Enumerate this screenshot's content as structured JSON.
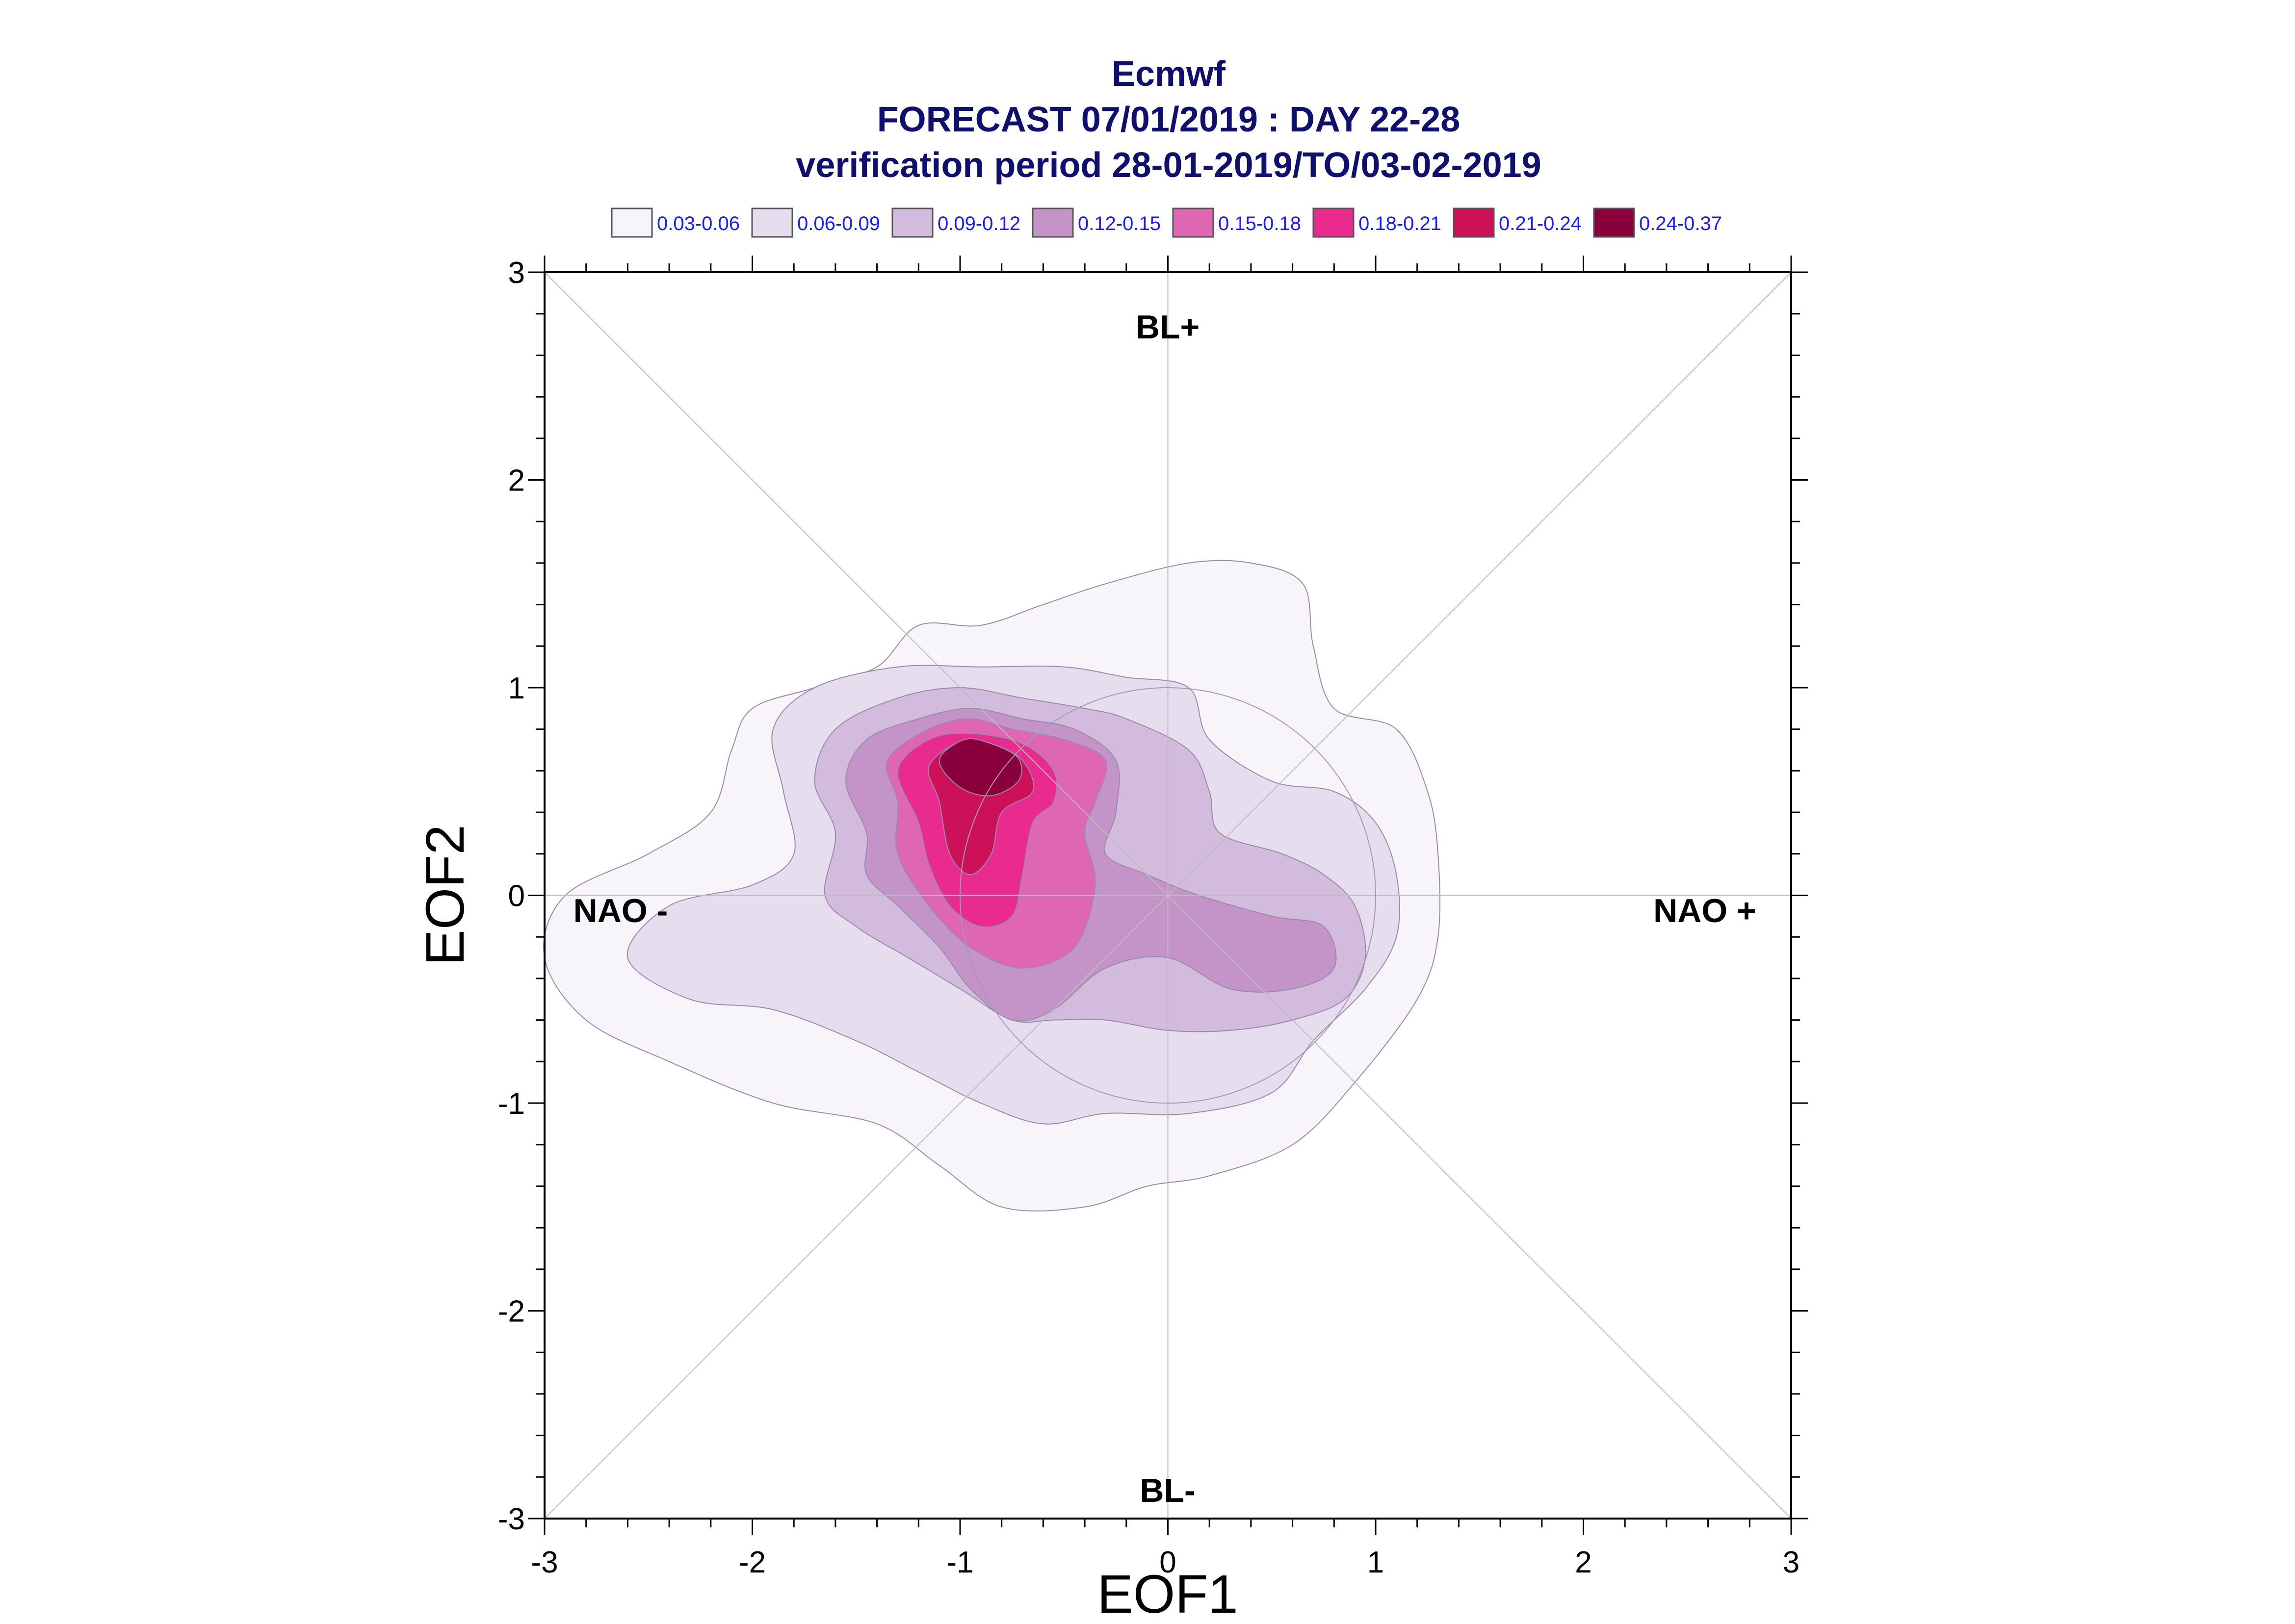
{
  "chart_data": {
    "type": "contour",
    "title_lines": [
      "Ecmwf",
      "FORECAST 07/01/2019 : DAY 22-28",
      "verification period 28-01-2019/TO/03-02-2019"
    ],
    "xlabel": "EOF1",
    "ylabel": "EOF2",
    "xlim": [
      -3,
      3
    ],
    "ylim": [
      -3,
      3
    ],
    "xticks": [
      "-3",
      "-2",
      "-1",
      "0",
      "1",
      "2",
      "3"
    ],
    "yticks": [
      "-3",
      "-2",
      "-1",
      "0",
      "1",
      "2",
      "3"
    ],
    "legend_position": "top",
    "legend": [
      {
        "label": "0.03-0.06",
        "color": "#f7f4fa"
      },
      {
        "label": "0.06-0.09",
        "color": "#e6ddee"
      },
      {
        "label": "0.09-0.12",
        "color": "#d3bbdd"
      },
      {
        "label": "0.12-0.15",
        "color": "#c494c8"
      },
      {
        "label": "0.15-0.18",
        "color": "#df66b2"
      },
      {
        "label": "0.18-0.21",
        "color": "#e92a8f"
      },
      {
        "label": "0.21-0.24",
        "color": "#cc1158"
      },
      {
        "label": "0.24-0.37",
        "color": "#8a003d"
      }
    ],
    "regime_labels": [
      "BL+",
      "BL-",
      "NAO -",
      "NAO +"
    ],
    "reference_circle_radius": 1,
    "density_levels": [
      {
        "range": "0.03-0.06",
        "color": "#f7f4fa",
        "outline": [
          [
            -3.0,
            -0.3
          ],
          [
            -2.9,
            0.0
          ],
          [
            -2.5,
            0.2
          ],
          [
            -2.2,
            0.4
          ],
          [
            -2.1,
            0.7
          ],
          [
            -2.0,
            0.9
          ],
          [
            -1.7,
            1.0
          ],
          [
            -1.4,
            1.1
          ],
          [
            -1.2,
            1.3
          ],
          [
            -0.9,
            1.3
          ],
          [
            -0.6,
            1.4
          ],
          [
            -0.3,
            1.5
          ],
          [
            0.1,
            1.6
          ],
          [
            0.4,
            1.6
          ],
          [
            0.65,
            1.5
          ],
          [
            0.7,
            1.2
          ],
          [
            0.8,
            0.9
          ],
          [
            1.1,
            0.8
          ],
          [
            1.25,
            0.5
          ],
          [
            1.3,
            0.2
          ],
          [
            1.3,
            -0.2
          ],
          [
            1.2,
            -0.5
          ],
          [
            0.9,
            -0.9
          ],
          [
            0.6,
            -1.2
          ],
          [
            0.2,
            -1.35
          ],
          [
            -0.1,
            -1.4
          ],
          [
            -0.4,
            -1.5
          ],
          [
            -0.8,
            -1.5
          ],
          [
            -1.1,
            -1.3
          ],
          [
            -1.4,
            -1.1
          ],
          [
            -1.9,
            -1.0
          ],
          [
            -2.4,
            -0.8
          ],
          [
            -2.8,
            -0.6
          ]
        ]
      },
      {
        "range": "0.06-0.09",
        "color": "#e6ddee",
        "outline": [
          [
            -2.6,
            -0.3
          ],
          [
            -2.4,
            -0.05
          ],
          [
            -2.0,
            0.05
          ],
          [
            -1.8,
            0.2
          ],
          [
            -1.85,
            0.5
          ],
          [
            -1.9,
            0.8
          ],
          [
            -1.7,
            1.0
          ],
          [
            -1.3,
            1.1
          ],
          [
            -0.9,
            1.1
          ],
          [
            -0.5,
            1.1
          ],
          [
            -0.2,
            1.05
          ],
          [
            0.1,
            1.0
          ],
          [
            0.2,
            0.75
          ],
          [
            0.5,
            0.55
          ],
          [
            0.8,
            0.5
          ],
          [
            1.0,
            0.35
          ],
          [
            1.1,
            0.1
          ],
          [
            1.1,
            -0.2
          ],
          [
            0.95,
            -0.45
          ],
          [
            0.7,
            -0.7
          ],
          [
            0.5,
            -0.95
          ],
          [
            0.1,
            -1.05
          ],
          [
            -0.3,
            -1.05
          ],
          [
            -0.6,
            -1.1
          ],
          [
            -0.9,
            -1.0
          ],
          [
            -1.2,
            -0.85
          ],
          [
            -1.5,
            -0.7
          ],
          [
            -1.9,
            -0.55
          ],
          [
            -2.3,
            -0.5
          ]
        ]
      },
      {
        "range": "0.09-0.12",
        "color": "#d3bbdd",
        "outline": [
          [
            -1.65,
            0.0
          ],
          [
            -1.6,
            0.3
          ],
          [
            -1.7,
            0.55
          ],
          [
            -1.6,
            0.8
          ],
          [
            -1.3,
            0.95
          ],
          [
            -1.0,
            1.0
          ],
          [
            -0.7,
            0.95
          ],
          [
            -0.4,
            0.9
          ],
          [
            -0.2,
            0.85
          ],
          [
            0.1,
            0.7
          ],
          [
            0.2,
            0.5
          ],
          [
            0.25,
            0.3
          ],
          [
            0.55,
            0.2
          ],
          [
            0.75,
            0.1
          ],
          [
            0.9,
            -0.05
          ],
          [
            0.95,
            -0.3
          ],
          [
            0.85,
            -0.5
          ],
          [
            0.6,
            -0.6
          ],
          [
            0.3,
            -0.65
          ],
          [
            0.0,
            -0.65
          ],
          [
            -0.3,
            -0.6
          ],
          [
            -0.55,
            -0.6
          ],
          [
            -0.75,
            -0.6
          ],
          [
            -1.0,
            -0.45
          ],
          [
            -1.25,
            -0.3
          ],
          [
            -1.5,
            -0.15
          ]
        ]
      },
      {
        "range": "0.12-0.15",
        "color": "#c494c8",
        "outline": [
          [
            -1.45,
            0.1
          ],
          [
            -1.45,
            0.3
          ],
          [
            -1.55,
            0.55
          ],
          [
            -1.45,
            0.75
          ],
          [
            -1.2,
            0.85
          ],
          [
            -0.95,
            0.9
          ],
          [
            -0.7,
            0.85
          ],
          [
            -0.45,
            0.8
          ],
          [
            -0.25,
            0.65
          ],
          [
            -0.25,
            0.4
          ],
          [
            -0.3,
            0.2
          ],
          [
            -0.1,
            0.1
          ],
          [
            0.15,
            0.0
          ],
          [
            0.5,
            -0.1
          ],
          [
            0.75,
            -0.15
          ],
          [
            0.8,
            -0.35
          ],
          [
            0.6,
            -0.45
          ],
          [
            0.3,
            -0.45
          ],
          [
            0.0,
            -0.3
          ],
          [
            -0.3,
            -0.35
          ],
          [
            -0.55,
            -0.55
          ],
          [
            -0.75,
            -0.6
          ],
          [
            -0.95,
            -0.45
          ],
          [
            -1.1,
            -0.25
          ],
          [
            -1.3,
            -0.05
          ]
        ]
      },
      {
        "range": "0.15-0.18",
        "color": "#df66b2",
        "outline": [
          [
            -1.3,
            0.2
          ],
          [
            -1.3,
            0.45
          ],
          [
            -1.35,
            0.65
          ],
          [
            -1.15,
            0.8
          ],
          [
            -0.95,
            0.85
          ],
          [
            -0.75,
            0.8
          ],
          [
            -0.5,
            0.75
          ],
          [
            -0.3,
            0.65
          ],
          [
            -0.35,
            0.45
          ],
          [
            -0.4,
            0.3
          ],
          [
            -0.35,
            0.05
          ],
          [
            -0.45,
            -0.25
          ],
          [
            -0.7,
            -0.35
          ],
          [
            -0.95,
            -0.25
          ],
          [
            -1.15,
            -0.05
          ]
        ]
      },
      {
        "range": "0.18-0.21",
        "color": "#e92a8f",
        "outline": [
          [
            -1.2,
            0.35
          ],
          [
            -1.3,
            0.6
          ],
          [
            -1.15,
            0.75
          ],
          [
            -0.95,
            0.78
          ],
          [
            -0.7,
            0.73
          ],
          [
            -0.55,
            0.6
          ],
          [
            -0.55,
            0.45
          ],
          [
            -0.65,
            0.35
          ],
          [
            -0.7,
            0.1
          ],
          [
            -0.75,
            -0.1
          ],
          [
            -0.9,
            -0.15
          ],
          [
            -1.05,
            -0.05
          ],
          [
            -1.15,
            0.15
          ]
        ]
      },
      {
        "range": "0.21-0.24",
        "color": "#cc1158",
        "outline": [
          [
            -1.1,
            0.45
          ],
          [
            -1.15,
            0.62
          ],
          [
            -1.0,
            0.74
          ],
          [
            -0.85,
            0.73
          ],
          [
            -0.7,
            0.65
          ],
          [
            -0.65,
            0.5
          ],
          [
            -0.8,
            0.4
          ],
          [
            -0.85,
            0.2
          ],
          [
            -0.95,
            0.1
          ],
          [
            -1.05,
            0.2
          ]
        ]
      },
      {
        "range": "0.24-0.37",
        "color": "#8a003d",
        "outline": [
          [
            -1.0,
            0.52
          ],
          [
            -1.1,
            0.65
          ],
          [
            -0.98,
            0.75
          ],
          [
            -0.85,
            0.73
          ],
          [
            -0.72,
            0.66
          ],
          [
            -0.72,
            0.55
          ],
          [
            -0.85,
            0.48
          ]
        ]
      }
    ]
  }
}
